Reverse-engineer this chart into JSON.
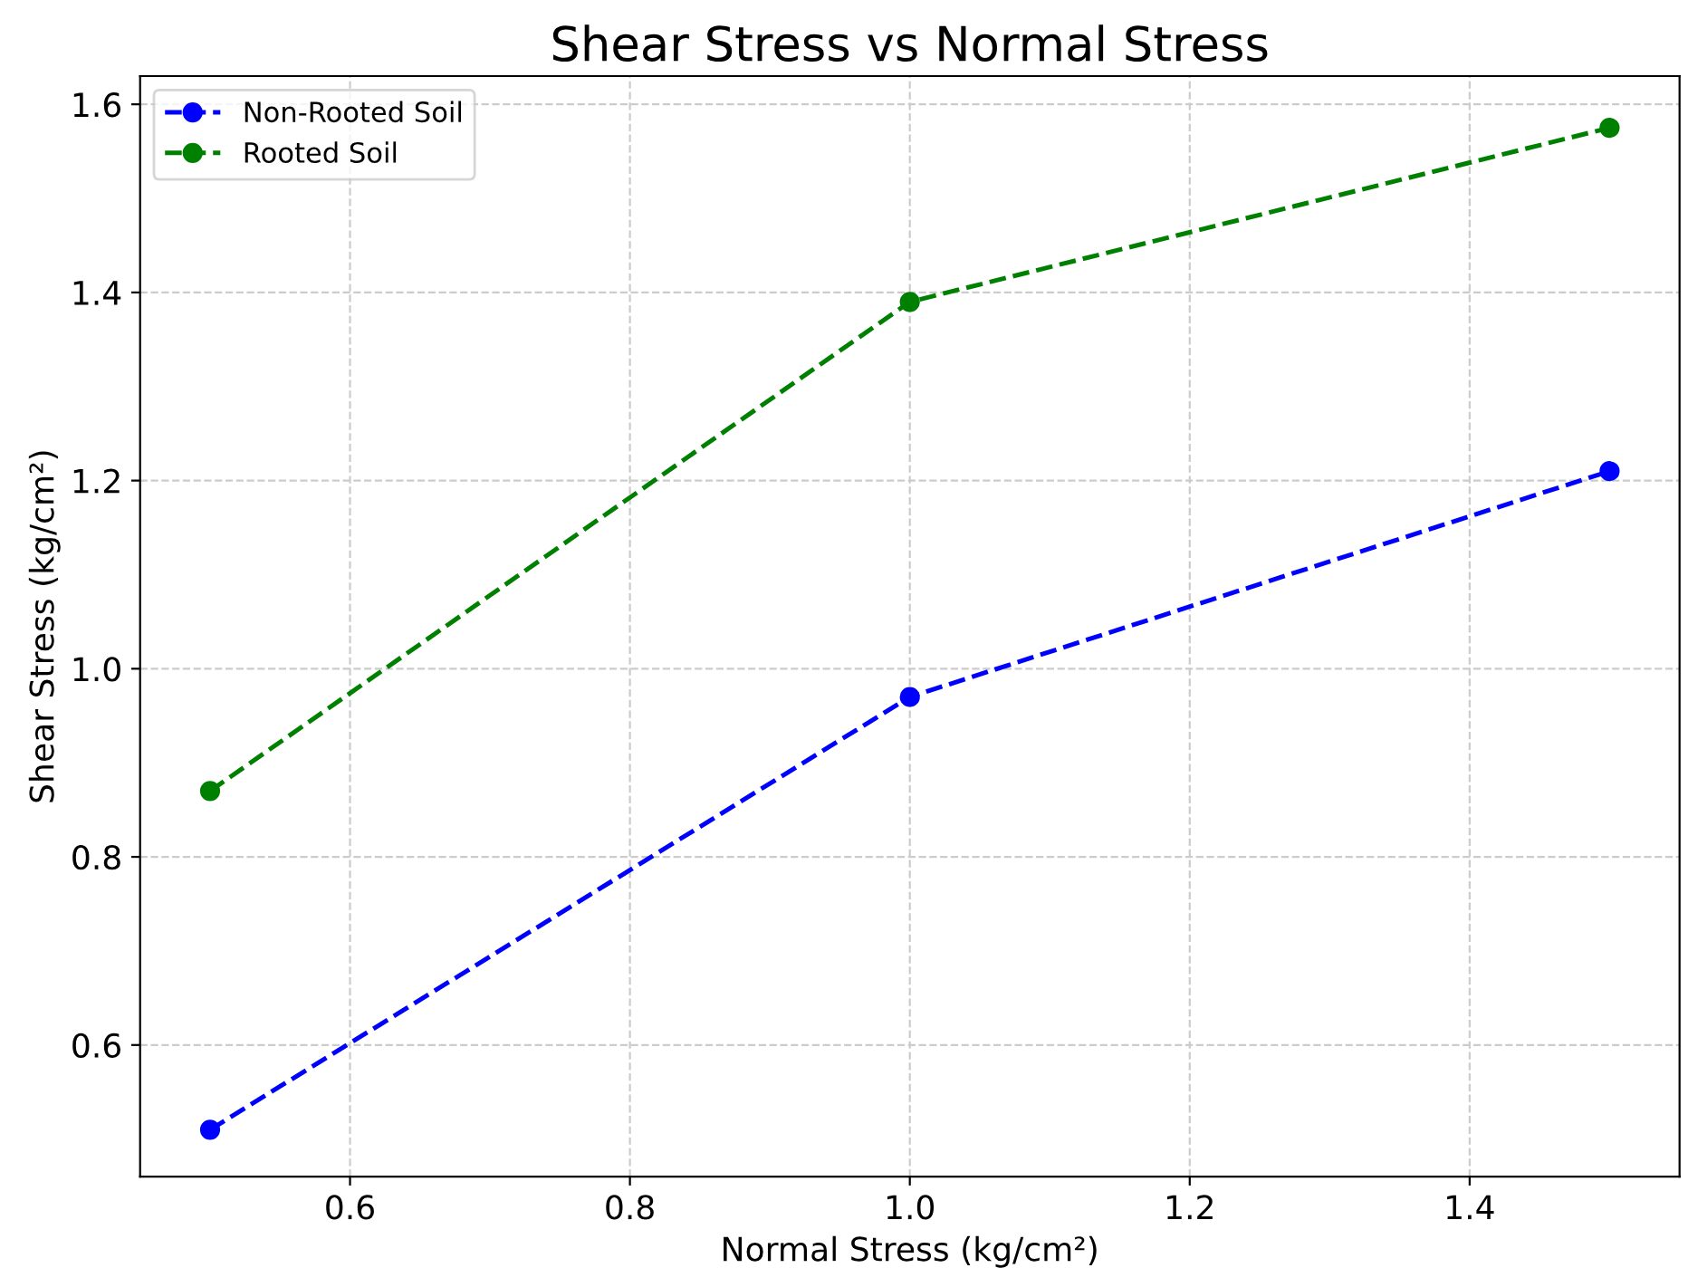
{
  "chart_data": {
    "type": "line",
    "title": "Shear Stress vs Normal Stress",
    "xlabel": "Normal Stress (kg/cm²)",
    "ylabel": "Shear Stress (kg/cm²)",
    "x": [
      0.5,
      1.0,
      1.5
    ],
    "series": [
      {
        "name": "Non-Rooted Soil",
        "color": "#0000ff",
        "values": [
          0.51,
          0.97,
          1.21
        ]
      },
      {
        "name": "Rooted Soil",
        "color": "#008000",
        "values": [
          0.87,
          1.39,
          1.575
        ]
      }
    ],
    "xlim": [
      0.45,
      1.55
    ],
    "ylim": [
      0.46,
      1.63
    ],
    "xticks": [
      0.6,
      0.8,
      {
        "value": 1.0,
        "label": "1.0"
      },
      1.2,
      1.4
    ],
    "yticks": [
      0.6,
      0.8,
      {
        "value": 1.0,
        "label": "1.0"
      },
      1.2,
      1.4,
      1.6
    ],
    "grid": true,
    "legend": "top left",
    "marker": "circle",
    "line_style": "dashed"
  }
}
